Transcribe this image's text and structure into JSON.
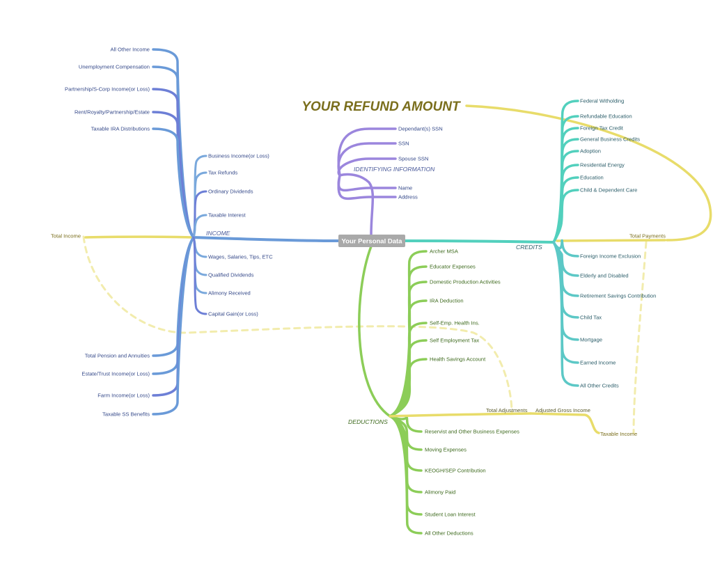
{
  "title": "YOUR REFUND AMOUNT",
  "center": "Your Personal Data",
  "colors": {
    "income": "#6a9ad8",
    "identifying": "#9b86dd",
    "credits": "#52d0bd",
    "deductions": "#8ccd58",
    "totals": "#e8dc6a",
    "title": "#7a6e1c",
    "center_box": "#a9a9a9"
  },
  "branches": {
    "income": {
      "label": "INCOME",
      "upper_items": [
        "All Other Income",
        "Unemployment Compensation",
        "Partnership/S-Corp Income(or Loss)",
        "Rent/Royalty/Partnership/Estate",
        "Taxable IRA Distributions"
      ],
      "inner_items": [
        "Business Income(or Loss)",
        "Tax Refunds",
        "Ordinary Dividends",
        "Taxable Interest",
        "Wages, Salaries, Tips, ETC",
        "Qualified Dividends",
        "Alimony Received",
        "Capital Gain(or Loss)"
      ],
      "lower_items": [
        "Total Pension and Annuities",
        "Estate/Trust Income(or Loss)",
        "Farm Income(or Loss)",
        "Taxable SS Benefits"
      ]
    },
    "identifying": {
      "label": "IDENTIFYING INFORMATION",
      "items": [
        "Dependant(s) SSN",
        "SSN",
        "Spouse SSN",
        "Name",
        "Address"
      ]
    },
    "credits": {
      "label": "CREDITS",
      "upper_items": [
        "Federal Witholding",
        "Refundable Education",
        "Foreign Tax Credit",
        "General Business Credits",
        "Adoption",
        "Residential Energy",
        "Education",
        "Child & Dependent Care"
      ],
      "lower_items": [
        "Foreign Income Exclusion",
        "Elderly and Disabled",
        "Retirement Savings Contribution",
        "Child Tax",
        "Mortgage",
        "Earned Income",
        "All Other Credits"
      ]
    },
    "deductions": {
      "label": "DEDUCTIONS",
      "upper_items": [
        "Archer MSA",
        "Educator Expenses",
        "Domestic Production Activities",
        "IRA Deduction",
        "Self-Emp. Health Ins.",
        "Self Employment Tax",
        "Health Savings Account"
      ],
      "lower_items": [
        "Reservist and Other Business Expenses",
        "Moving Expenses",
        "KEOGH/SEP Contribution",
        "Alimony Paid",
        "Student Loan Interest",
        "All Other Deductions"
      ]
    }
  },
  "totals": {
    "total_income": "Total Income",
    "total_payments": "Total Payments",
    "total_adjustments": "Total Adjustments",
    "adjusted_gross_income": "Adjusted Gross Income",
    "taxable_income": "Taxable Income"
  }
}
